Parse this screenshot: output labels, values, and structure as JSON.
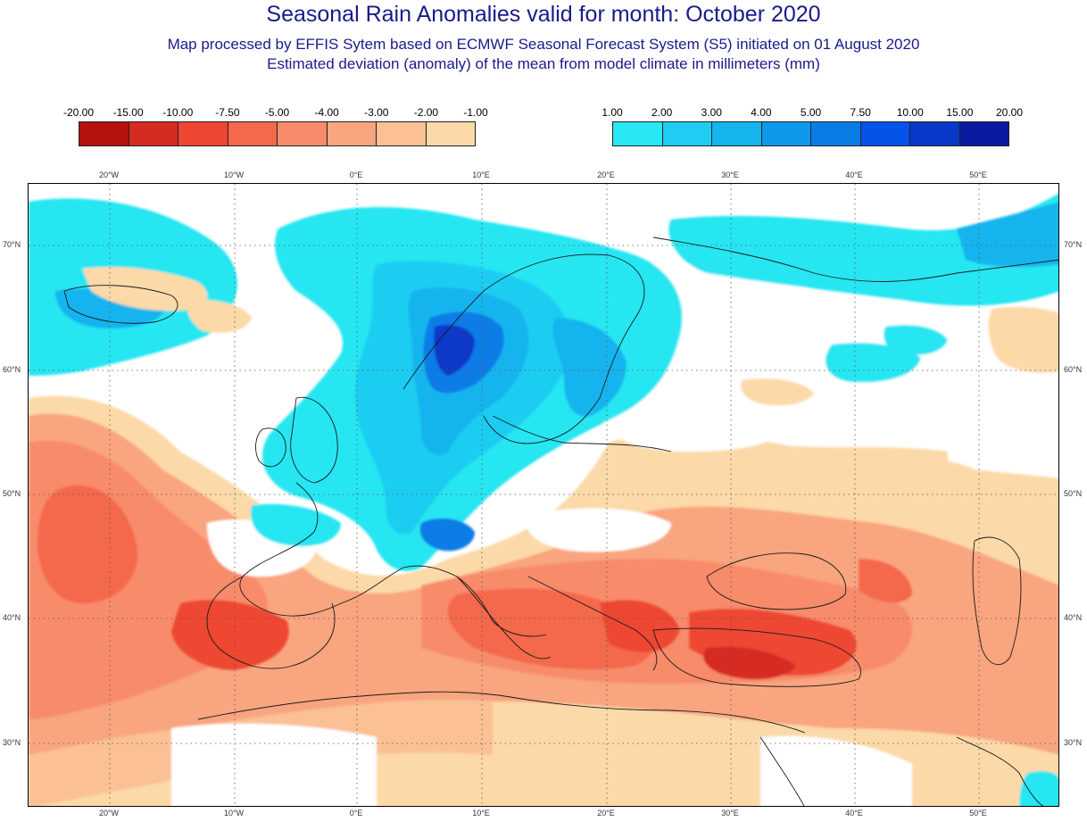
{
  "title": "Seasonal Rain Anomalies valid for month: October 2020",
  "subtitle_line1": "Map processed by EFFIS Sytem based on ECMWF Seasonal Forecast System (S5) initiated on 01 August 2020",
  "subtitle_line2": "Estimated deviation (anomaly) of the mean from model climate in millimeters (mm)",
  "legend_negative": {
    "labels": [
      "-20.00",
      "-15.00",
      "-10.00",
      "-7.50",
      "-5.00",
      "-4.00",
      "-3.00",
      "-2.00",
      "-1.00"
    ],
    "colors": [
      "#b3130f",
      "#d62b22",
      "#ee4633",
      "#f4684c",
      "#f88b6a",
      "#f9a57f",
      "#fbc094",
      "#fcd9a8"
    ]
  },
  "legend_positive": {
    "labels": [
      "1.00",
      "2.00",
      "3.00",
      "4.00",
      "5.00",
      "7.50",
      "10.00",
      "15.00",
      "20.00"
    ],
    "colors": [
      "#28e6f2",
      "#1fcdf2",
      "#16b4ee",
      "#0f99ea",
      "#0a7ce6",
      "#0553e8",
      "#0838c8",
      "#0a1aa0"
    ]
  },
  "map": {
    "longitude_labels": [
      "20°W",
      "10°W",
      "0°E",
      "10°E",
      "20°E",
      "30°E",
      "40°E",
      "50°E"
    ],
    "latitude_labels": [
      "70°N",
      "60°N",
      "50°N",
      "40°N",
      "30°N"
    ],
    "colors": {
      "land_outline": "#1a1a1a",
      "grid": "#555555"
    }
  }
}
